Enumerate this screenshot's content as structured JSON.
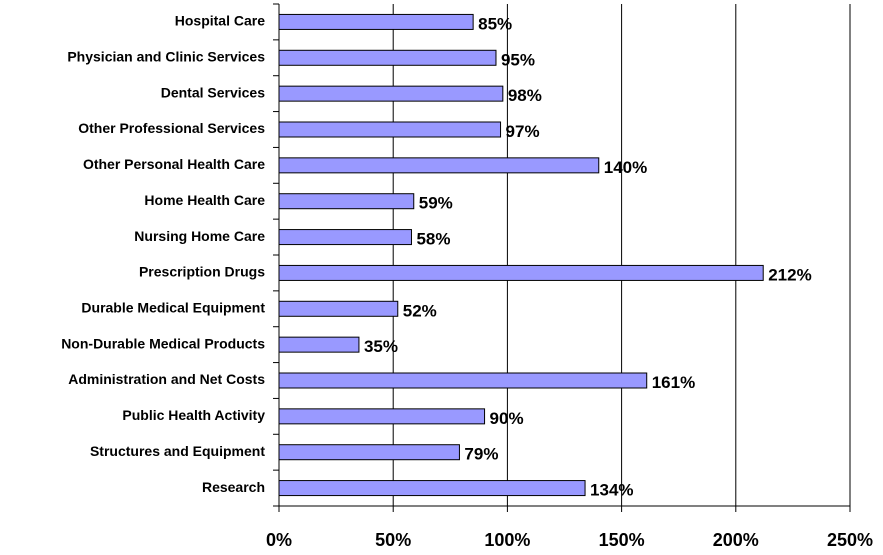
{
  "chart_data": {
    "type": "bar",
    "orientation": "horizontal",
    "categories": [
      "Hospital Care",
      "Physician and Clinic Services",
      "Dental Services",
      "Other Professional Services",
      "Other Personal Health Care",
      "Home Health Care",
      "Nursing Home Care",
      "Prescription Drugs",
      "Durable Medical Equipment",
      "Non-Durable Medical Products",
      "Administration and Net Costs",
      "Public Health Activity",
      "Structures and Equipment",
      "Research"
    ],
    "values": [
      85,
      95,
      98,
      97,
      140,
      59,
      58,
      212,
      52,
      35,
      161,
      90,
      79,
      134
    ],
    "value_labels": [
      "85%",
      "95%",
      "98%",
      "97%",
      "140%",
      "59%",
      "58%",
      "212%",
      "52%",
      "35%",
      "161%",
      "90%",
      "79%",
      "134%"
    ],
    "color": "#9999ff",
    "xlim": [
      0,
      250
    ],
    "xticks": [
      {
        "value": 0,
        "label": "0%"
      },
      {
        "value": 50,
        "label": "50%"
      },
      {
        "value": 100,
        "label": "100%"
      },
      {
        "value": 150,
        "label": "150%"
      },
      {
        "value": 200,
        "label": "200%"
      },
      {
        "value": 250,
        "label": "250%"
      }
    ],
    "grid": true
  }
}
